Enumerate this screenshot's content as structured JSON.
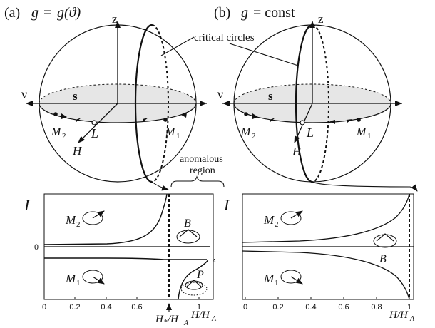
{
  "panel_a": {
    "label": "(a)",
    "g": "g",
    "eq": " = ",
    "g_theta": "g(ϑ)",
    "axis_z": "z",
    "axis_nu": "ν",
    "s": "s",
    "M2": "M",
    "M2_sub": "2",
    "M1": "M",
    "M1_sub": "1",
    "L": "L",
    "H": "H",
    "plot": {
      "I": "I",
      "zero": "0",
      "M2": "M",
      "M2_sub": "2",
      "M1": "M",
      "M1_sub": "1",
      "B": "B",
      "P": "P",
      "A": "A",
      "xticks": [
        "0",
        "0.2",
        "0.4",
        "0.6",
        "1"
      ],
      "hstar_H": "H",
      "hstar_sub": "*",
      "hstar_slash": "/H",
      "hstar_sub2": "A",
      "xlabel_H": "H/H",
      "xlabel_sub": "A"
    }
  },
  "panel_b": {
    "label": "(b)",
    "g": "g",
    "eq": " = const",
    "axis_z": "z",
    "axis_nu": "ν",
    "s": "s",
    "M2": "M",
    "M2_sub": "2",
    "M1": "M",
    "M1_sub": "1",
    "L": "L",
    "H": "H",
    "plot": {
      "I": "I",
      "M2": "M",
      "M2_sub": "2",
      "M1": "M",
      "M1_sub": "1",
      "B": "B",
      "xticks": [
        "0",
        "0.2",
        "0.4",
        "0.6",
        "0.8",
        "1"
      ],
      "xlabel_H": "H/H",
      "xlabel_sub": "A"
    }
  },
  "annotations": {
    "critical_circles": "critical circles",
    "anomalous_line1": "anomalous",
    "anomalous_line2": "region"
  }
}
